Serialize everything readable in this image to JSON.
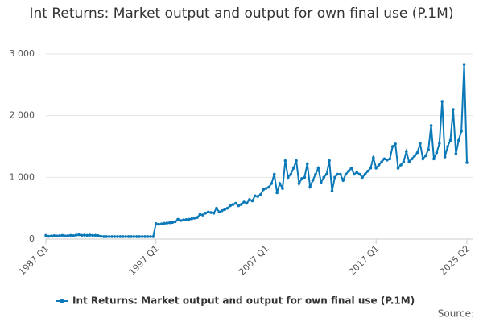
{
  "chart_data": {
    "type": "line",
    "title": "Int Returns: Market output and output for own final use (P.1M)",
    "source": "Source:",
    "categories": [
      "1987 Q1",
      null,
      null,
      null,
      null,
      null,
      null,
      null,
      null,
      null,
      null,
      null,
      null,
      null,
      null,
      null,
      null,
      null,
      null,
      null,
      null,
      null,
      null,
      null,
      null,
      null,
      null,
      null,
      null,
      null,
      null,
      null,
      null,
      null,
      null,
      null,
      null,
      null,
      null,
      null,
      "1997 Q1",
      null,
      null,
      null,
      null,
      null,
      null,
      null,
      null,
      null,
      null,
      null,
      null,
      null,
      null,
      null,
      null,
      null,
      null,
      null,
      null,
      null,
      null,
      null,
      null,
      null,
      null,
      null,
      null,
      null,
      null,
      null,
      null,
      null,
      null,
      null,
      null,
      null,
      null,
      null,
      "2007 Q1",
      null,
      null,
      null,
      null,
      null,
      null,
      null,
      null,
      null,
      null,
      null,
      null,
      null,
      null,
      null,
      null,
      null,
      null,
      null,
      null,
      null,
      null,
      null,
      null,
      null,
      null,
      null,
      null,
      null,
      null,
      null,
      null,
      null,
      null,
      null,
      null,
      null,
      null,
      null,
      "2017 Q1",
      null,
      null,
      null,
      null,
      null,
      null,
      null,
      null,
      null,
      null,
      null,
      null,
      null,
      null,
      null,
      null,
      null,
      null,
      null,
      null,
      null,
      null,
      null,
      null,
      null,
      null,
      null,
      null,
      null,
      null,
      null,
      null,
      "2025 Q2"
    ],
    "series": [
      {
        "name": "Int Returns: Market output and output for own final use (P.1M)",
        "color": "#0b79b8",
        "values": [
          60,
          45,
          50,
          55,
          50,
          55,
          60,
          50,
          55,
          60,
          55,
          65,
          70,
          60,
          65,
          60,
          65,
          60,
          60,
          55,
          45,
          40,
          40,
          40,
          40,
          40,
          40,
          40,
          40,
          40,
          40,
          40,
          40,
          40,
          40,
          40,
          40,
          40,
          40,
          40,
          250,
          240,
          245,
          255,
          260,
          265,
          270,
          280,
          320,
          300,
          310,
          315,
          320,
          330,
          340,
          350,
          400,
          390,
          420,
          440,
          430,
          420,
          500,
          440,
          460,
          480,
          500,
          540,
          560,
          580,
          540,
          560,
          600,
          580,
          640,
          620,
          700,
          690,
          720,
          800,
          820,
          840,
          900,
          1050,
          750,
          900,
          820,
          1270,
          1000,
          1050,
          1150,
          1270,
          900,
          980,
          1000,
          1220,
          850,
          950,
          1050,
          1150,
          920,
          1000,
          1050,
          1270,
          780,
          1000,
          1050,
          1050,
          950,
          1050,
          1100,
          1150,
          1050,
          1080,
          1050,
          1000,
          1050,
          1100,
          1150,
          1320,
          1150,
          1200,
          1250,
          1300,
          1280,
          1300,
          1500,
          1540,
          1150,
          1200,
          1250,
          1420,
          1250,
          1300,
          1350,
          1400,
          1550,
          1300,
          1350,
          1450,
          1840,
          1300,
          1400,
          1550,
          2230,
          1330,
          1500,
          1600,
          2100,
          1380,
          1600,
          1750,
          2830,
          1240
        ]
      }
    ],
    "ylim": [
      0,
      3000
    ],
    "yticks": [
      0,
      {
        "value": 1000,
        "label": "1 000"
      },
      {
        "value": 2000,
        "label": "2 000"
      },
      {
        "value": 3000,
        "label": "3 000"
      }
    ],
    "grid": true
  }
}
